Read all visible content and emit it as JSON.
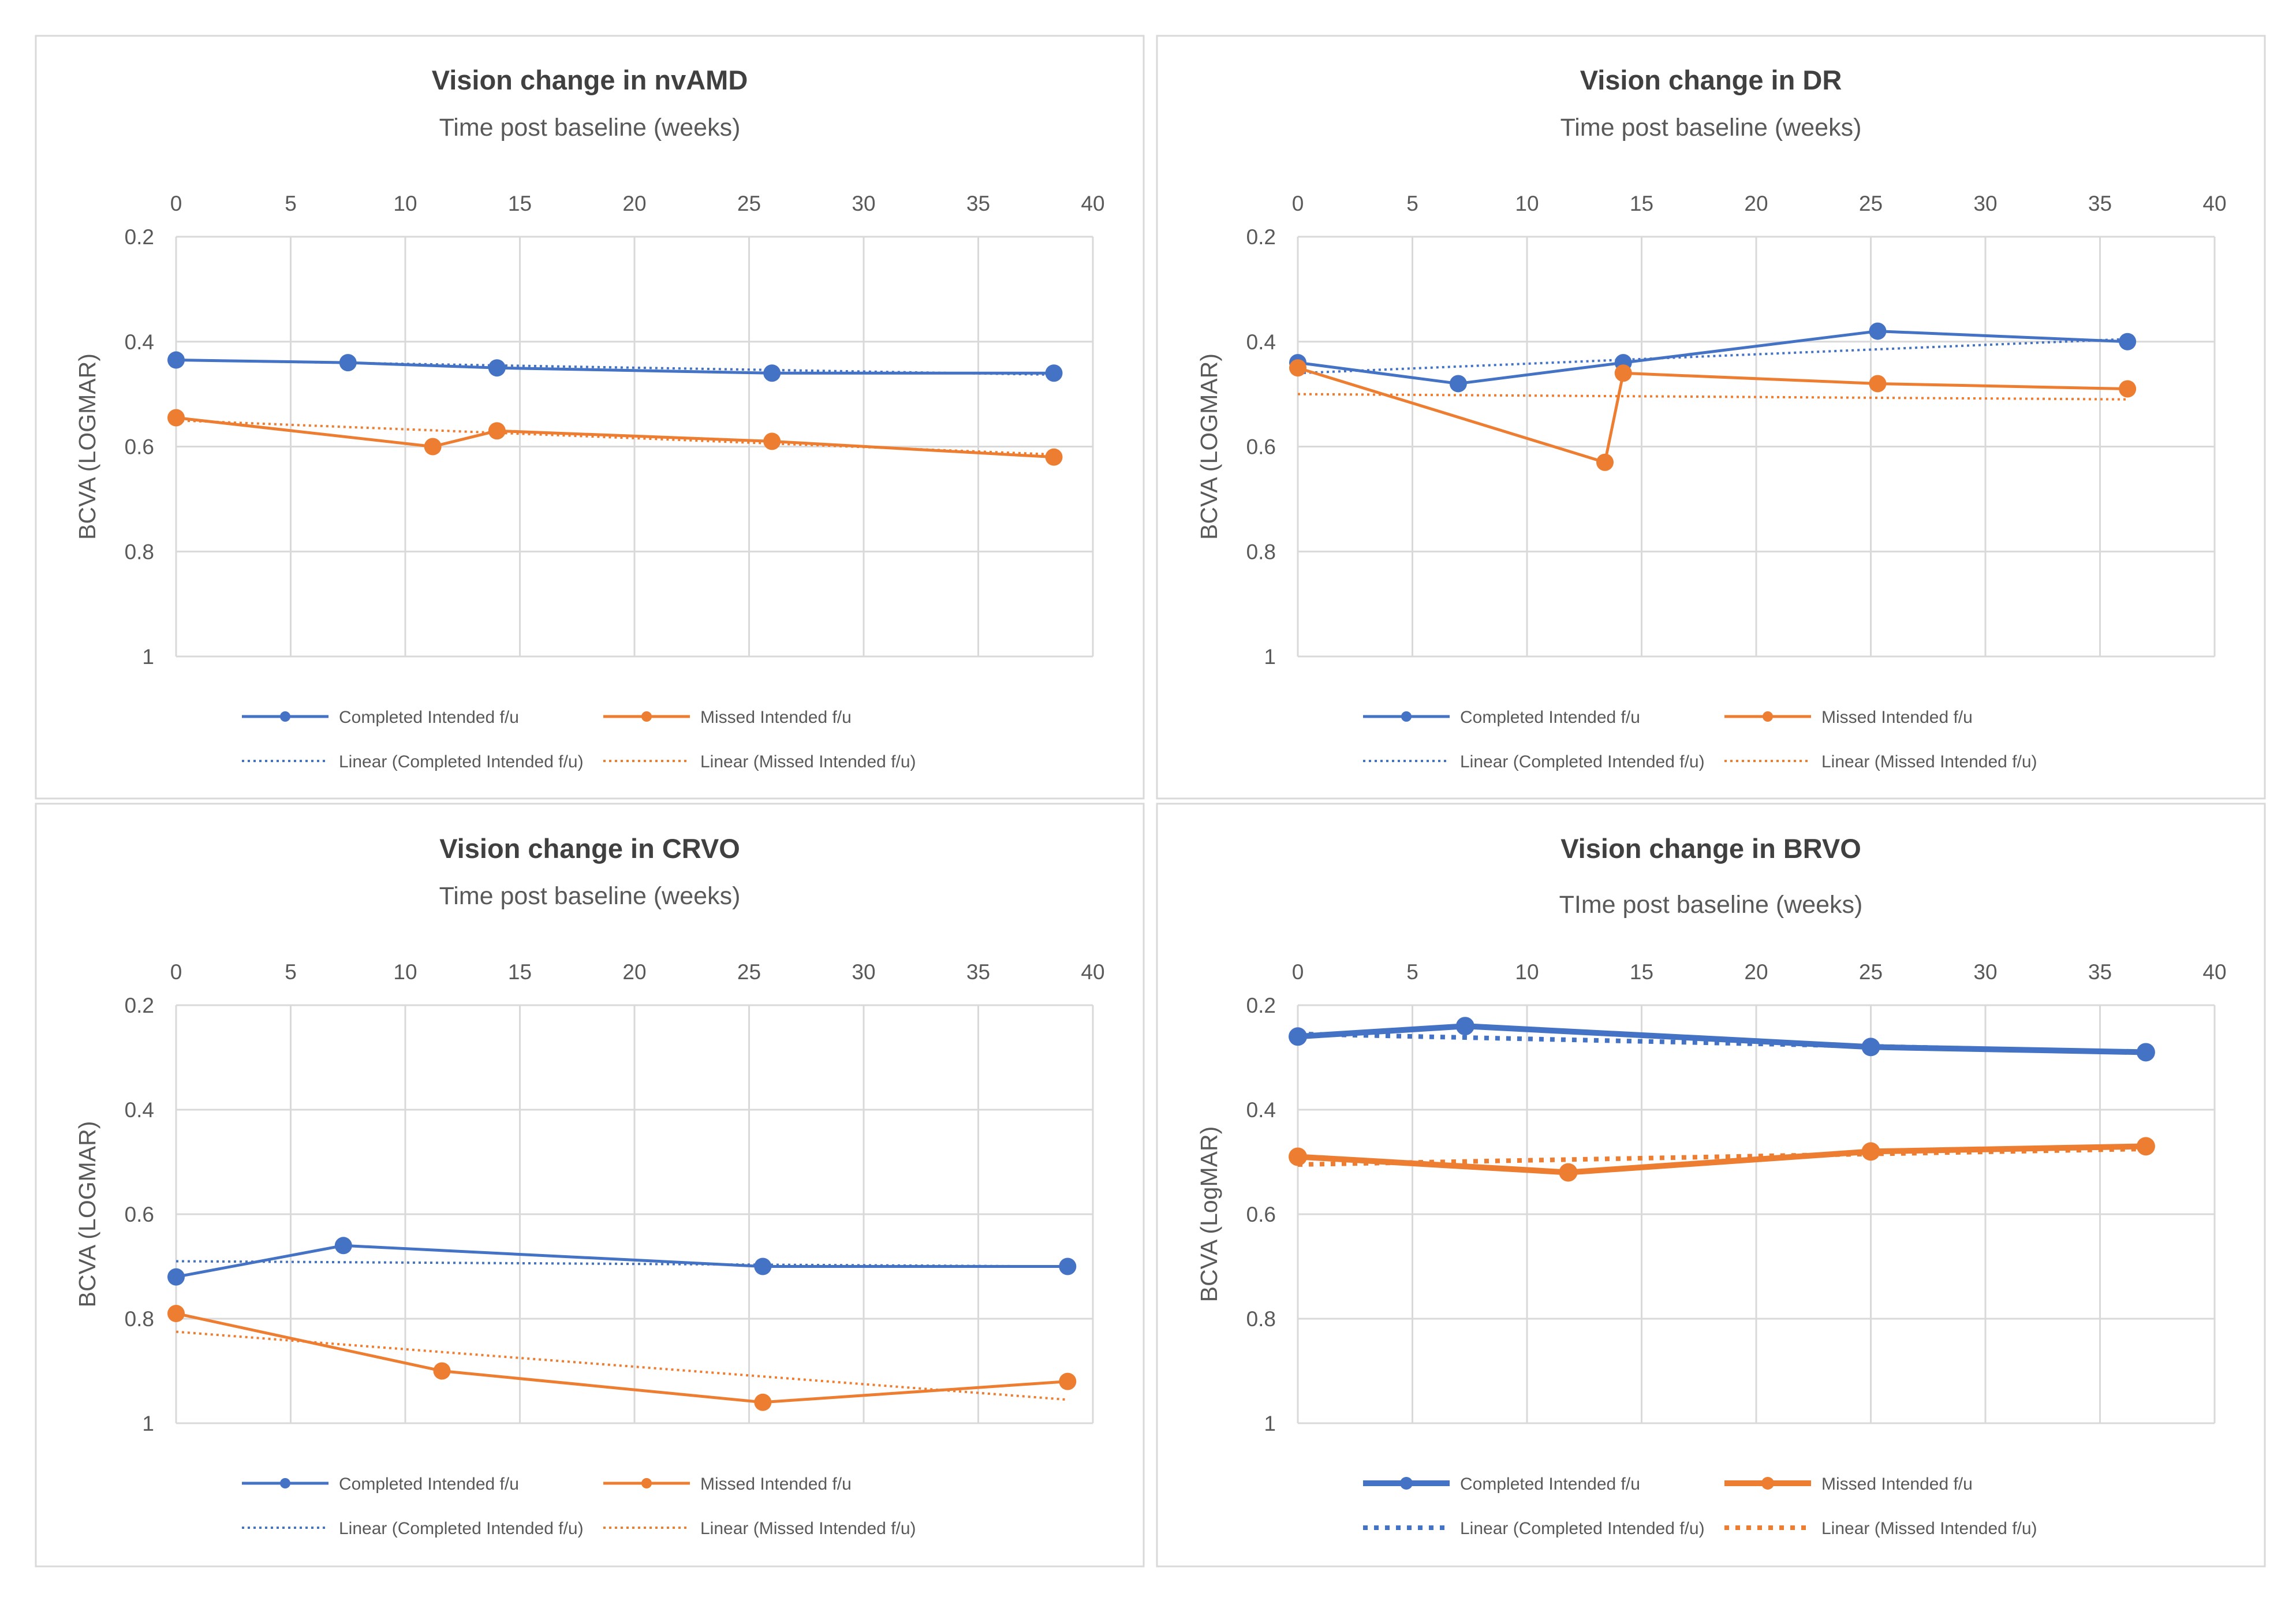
{
  "colors": {
    "completed": "#4472C4",
    "missed": "#ED7D31",
    "grid": "#D9D9D9",
    "text": "#595959",
    "title": "#404040",
    "panel_border": "#D9D9D9"
  },
  "chart_data": [
    {
      "type": "line",
      "title": "Vision change in nvAMD",
      "xlabel": "Time post baseline (weeks)",
      "ylabel": "BCVA (LOGMAR)",
      "xlim": [
        0,
        40
      ],
      "ylim": [
        0.2,
        1
      ],
      "y_reversed": true,
      "x_ticks": [
        "0",
        "5",
        "10",
        "15",
        "20",
        "25",
        "30",
        "35",
        "40"
      ],
      "y_ticks": [
        "0.2",
        "0.4",
        "0.6",
        "0.8",
        "1"
      ],
      "grid": true,
      "bold": false,
      "series": [
        {
          "name": "Completed Intended f/u",
          "color_key": "completed",
          "x": [
            0,
            7.5,
            14,
            26,
            38.3
          ],
          "y": [
            0.435,
            0.44,
            0.45,
            0.46,
            0.46
          ]
        },
        {
          "name": "Missed Intended f/u",
          "color_key": "missed",
          "x": [
            0,
            11.2,
            14,
            26,
            38.3
          ],
          "y": [
            0.545,
            0.6,
            0.57,
            0.59,
            0.62
          ]
        }
      ],
      "trendlines": [
        {
          "name": "Linear (Completed Intended f/u)",
          "color_key": "completed",
          "x": [
            0,
            38.3
          ],
          "y": [
            0.435,
            0.463
          ]
        },
        {
          "name": "Linear (Missed Intended f/u)",
          "color_key": "missed",
          "x": [
            0,
            38.3
          ],
          "y": [
            0.55,
            0.615
          ]
        }
      ]
    },
    {
      "type": "line",
      "title": "Vision change in DR",
      "xlabel": "Time post baseline (weeks)",
      "ylabel": "BCVA (LOGMAR)",
      "xlim": [
        0,
        40
      ],
      "ylim": [
        0.2,
        1
      ],
      "y_reversed": true,
      "x_ticks": [
        "0",
        "5",
        "10",
        "15",
        "20",
        "25",
        "30",
        "35",
        "40"
      ],
      "y_ticks": [
        "0.2",
        "0.4",
        "0.6",
        "0.8",
        "1"
      ],
      "grid": true,
      "bold": false,
      "series": [
        {
          "name": "Completed Intended f/u",
          "color_key": "completed",
          "x": [
            0,
            7,
            14.2,
            25.3,
            36.2
          ],
          "y": [
            0.44,
            0.48,
            0.44,
            0.38,
            0.4
          ]
        },
        {
          "name": "Missed Intended f/u",
          "color_key": "missed",
          "x": [
            0,
            13.4,
            14.2,
            25.3,
            36.2
          ],
          "y": [
            0.45,
            0.63,
            0.46,
            0.48,
            0.49
          ]
        }
      ],
      "trendlines": [
        {
          "name": "Linear (Completed Intended f/u)",
          "color_key": "completed",
          "x": [
            0,
            36.2
          ],
          "y": [
            0.46,
            0.395
          ]
        },
        {
          "name": "Linear (Missed Intended f/u)",
          "color_key": "missed",
          "x": [
            0,
            36.2
          ],
          "y": [
            0.5,
            0.51
          ]
        }
      ]
    },
    {
      "type": "line",
      "title": "Vision change in CRVO",
      "xlabel": "Time post baseline (weeks)",
      "ylabel": "BCVA (LOGMAR)",
      "xlim": [
        0,
        40
      ],
      "ylim": [
        0.2,
        1
      ],
      "y_reversed": true,
      "x_ticks": [
        "0",
        "5",
        "10",
        "15",
        "20",
        "25",
        "30",
        "35",
        "40"
      ],
      "y_ticks": [
        "0.2",
        "0.4",
        "0.6",
        "0.8",
        "1"
      ],
      "grid": true,
      "bold": false,
      "series": [
        {
          "name": "Completed Intended f/u",
          "color_key": "completed",
          "x": [
            0,
            7.3,
            25.6,
            38.9
          ],
          "y": [
            0.72,
            0.66,
            0.7,
            0.7
          ]
        },
        {
          "name": "Missed Intended f/u",
          "color_key": "missed",
          "x": [
            0,
            11.6,
            25.6,
            38.9
          ],
          "y": [
            0.79,
            0.9,
            0.96,
            0.92
          ]
        }
      ],
      "trendlines": [
        {
          "name": "Linear (Completed Intended f/u)",
          "color_key": "completed",
          "x": [
            0,
            38.9
          ],
          "y": [
            0.69,
            0.7
          ]
        },
        {
          "name": "Linear (Missed Intended f/u)",
          "color_key": "missed",
          "x": [
            0,
            38.9
          ],
          "y": [
            0.825,
            0.955
          ]
        }
      ]
    },
    {
      "type": "line",
      "title": "Vision change in BRVO",
      "xlabel": "TIme post baseline (weeks)",
      "ylabel": "BCVA (LogMAR)",
      "xlim": [
        0,
        40
      ],
      "ylim": [
        0.2,
        1
      ],
      "y_reversed": true,
      "x_ticks": [
        "0",
        "5",
        "10",
        "15",
        "20",
        "25",
        "30",
        "35",
        "40"
      ],
      "y_ticks": [
        "0.2",
        "0.4",
        "0.6",
        "0.8",
        "1"
      ],
      "grid": true,
      "bold": true,
      "series": [
        {
          "name": "Completed Intended f/u",
          "color_key": "completed",
          "x": [
            0,
            7.3,
            25,
            37
          ],
          "y": [
            0.26,
            0.24,
            0.28,
            0.29
          ]
        },
        {
          "name": "Missed Intended f/u",
          "color_key": "missed",
          "x": [
            0,
            11.8,
            25,
            37
          ],
          "y": [
            0.49,
            0.52,
            0.48,
            0.47
          ]
        }
      ],
      "trendlines": [
        {
          "name": "Linear (Completed Intended f/u)",
          "color_key": "completed",
          "x": [
            0,
            37
          ],
          "y": [
            0.255,
            0.29
          ]
        },
        {
          "name": "Linear (Missed Intended f/u)",
          "color_key": "missed",
          "x": [
            0,
            37
          ],
          "y": [
            0.505,
            0.475
          ]
        }
      ]
    }
  ]
}
